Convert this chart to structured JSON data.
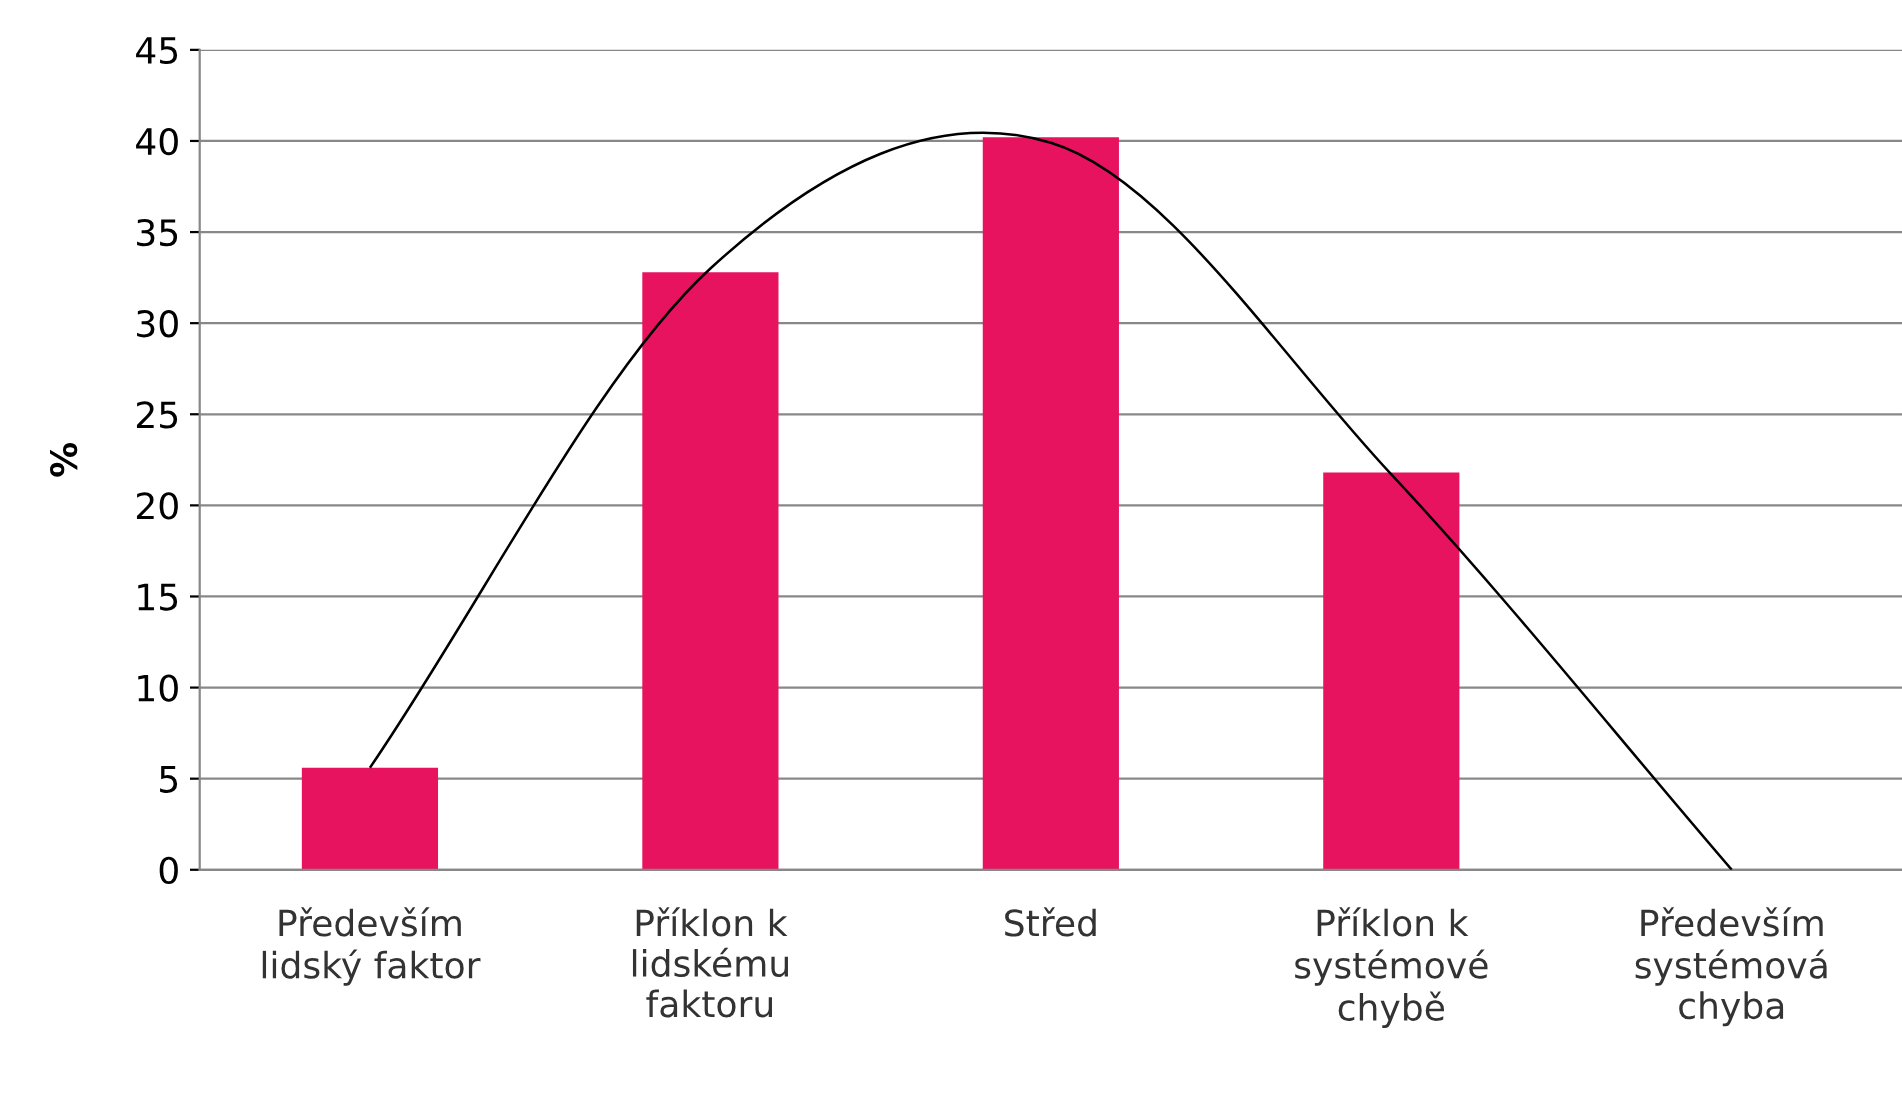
{
  "chart_data": {
    "type": "bar",
    "ylabel": "%",
    "categories": [
      "Především\nlidský faktor",
      "Příklon k\nlidskému\nfaktoru",
      "Střed",
      "Příklon k\nsystémové\nchybě",
      "Především\nsystémová\nchyba"
    ],
    "series": [
      {
        "color": "#e8135f",
        "values": [
          5.6,
          32.8,
          40.2,
          21.8,
          0
        ]
      },
      {
        "type": "line",
        "color": "#000000",
        "values": [
          5.6,
          33,
          39.9,
          21.7,
          0
        ]
      }
    ],
    "ylim": [
      0,
      45
    ],
    "yticks": [
      0,
      5,
      10,
      15,
      20,
      25,
      30,
      35,
      40,
      45
    ],
    "grid": "y",
    "marker": "none",
    "line_style": "solid"
  }
}
